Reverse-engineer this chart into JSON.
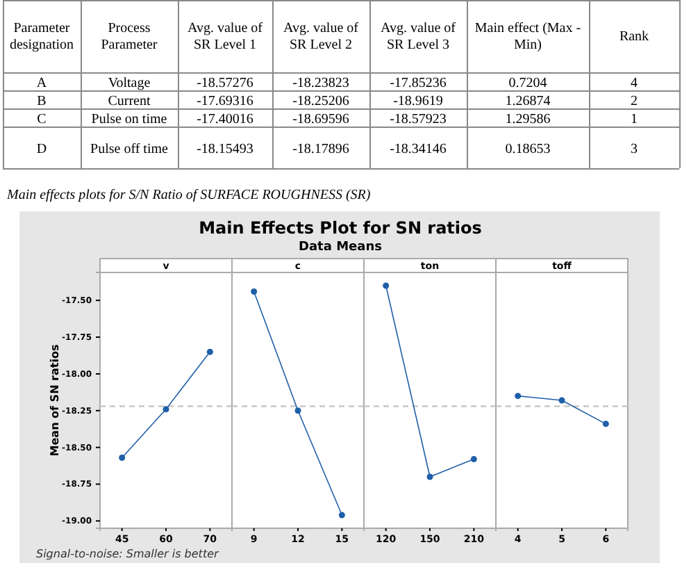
{
  "chart_data": [
    {
      "type": "other",
      "categories": [
        "Parameter designation",
        "Process Parameter",
        "Avg. value of SR Level 1",
        "Avg. value of SR Level 2",
        "Avg. value of SR Level 3",
        "Main effect (Max - Min)",
        "Rank"
      ],
      "annotations": [
        "A",
        "Voltage",
        "-18.57276",
        "-18.23823",
        "-17.85236",
        "0.7204",
        "4",
        "B",
        "Current",
        "-17.69316",
        "-18.25206",
        "-18.9619",
        "1.26874",
        "2",
        "C",
        "Pulse on time",
        "-17.40016",
        "-18.69596",
        "-18.57923",
        "1.29586",
        "1",
        "D",
        "Pulse off time",
        "-18.15493",
        "-18.17896",
        "-18.34146",
        "0.18653",
        "3"
      ]
    },
    {
      "type": "other",
      "title": "Main Effects Plot for SN ratios",
      "subtitle": "Data Means",
      "annotations": [
        "Main effects plots for S/N Ratio of SURFACE ROUGHNESS (SR)",
        "Signal-to-noise: Smaller is better"
      ]
    },
    {
      "type": "line",
      "title": "v",
      "ylabel": "Mean of SN ratios",
      "categories": [
        "45",
        "60",
        "70"
      ],
      "series": [
        {
          "color": "#1f5fa8",
          "values": [
            -18.57,
            -18.24,
            -17.85
          ]
        }
      ],
      "ylim": [
        -19.05,
        -17.31
      ],
      "yticks": [
        {
          "value": -17.5,
          "label": "-17.50"
        },
        {
          "value": -17.75,
          "label": "-17.75"
        },
        {
          "value": -18,
          "label": "-18.00"
        },
        {
          "value": -18.25,
          "label": "-18.25"
        },
        {
          "value": -18.5,
          "label": "-18.50"
        },
        {
          "value": -18.75,
          "label": "-18.75"
        },
        {
          "value": -19,
          "label": "-19.00"
        }
      ],
      "marker": "circle",
      "ref_lines": [
        {
          "axis": "y",
          "value": -18.22,
          "color": "#c8c8c8",
          "line_style": "dashed"
        }
      ]
    },
    {
      "type": "line",
      "title": "c",
      "categories": [
        "9",
        "12",
        "15"
      ],
      "series": [
        {
          "color": "#1f5fa8",
          "values": [
            -17.44,
            -18.25,
            -18.96
          ]
        }
      ],
      "ylim": [
        -19.05,
        -17.31
      ],
      "tick_labels": "x",
      "marker": "circle",
      "ref_lines": [
        {
          "axis": "y",
          "value": -18.22,
          "color": "#c8c8c8",
          "line_style": "dashed"
        }
      ]
    },
    {
      "type": "line",
      "title": "ton",
      "categories": [
        "120",
        "150",
        "210"
      ],
      "series": [
        {
          "color": "#1f5fa8",
          "values": [
            -17.4,
            -18.7,
            -18.58
          ]
        }
      ],
      "ylim": [
        -19.05,
        -17.31
      ],
      "tick_labels": "x",
      "marker": "circle",
      "ref_lines": [
        {
          "axis": "y",
          "value": -18.22,
          "color": "#c8c8c8",
          "line_style": "dashed"
        }
      ]
    },
    {
      "type": "line",
      "title": "toff",
      "categories": [
        "4",
        "5",
        "6"
      ],
      "series": [
        {
          "color": "#1f5fa8",
          "values": [
            -18.15,
            -18.18,
            -18.34
          ]
        }
      ],
      "ylim": [
        -19.05,
        -17.31
      ],
      "tick_labels": "x",
      "marker": "circle",
      "ref_lines": [
        {
          "axis": "y",
          "value": -18.22,
          "color": "#c8c8c8",
          "line_style": "dashed"
        }
      ]
    }
  ]
}
